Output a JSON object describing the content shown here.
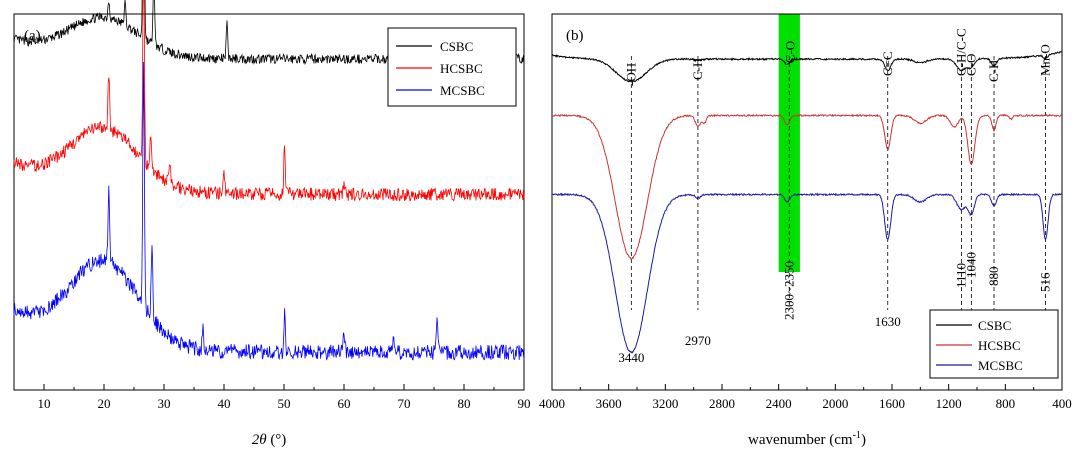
{
  "chart_data": [
    {
      "type": "line",
      "panel_label": "(a)",
      "xlabel_italic": "2θ",
      "xlabel_unit": " (°)",
      "ylabel": "",
      "xlim": [
        5,
        90
      ],
      "x_ticks": [
        10,
        20,
        30,
        40,
        50,
        60,
        70,
        80,
        90
      ],
      "y_ticks_shown": false,
      "legend_position": "top-right",
      "series": [
        {
          "name": "CSBC",
          "color": "#000000",
          "baseline": 0.88,
          "noise": 0.025,
          "hump": 0.1,
          "peaks": [
            [
              20.8,
              0.05
            ],
            [
              23.5,
              0.06
            ],
            [
              26.6,
              0.55
            ],
            [
              28.3,
              0.18
            ],
            [
              40.5,
              0.09
            ]
          ]
        },
        {
          "name": "HCSBC",
          "color": "#ff0000",
          "baseline": 0.52,
          "noise": 0.035,
          "hump": 0.16,
          "peaks": [
            [
              20.8,
              0.15
            ],
            [
              26.6,
              0.55
            ],
            [
              27.8,
              0.1
            ],
            [
              31.0,
              0.06
            ],
            [
              40.0,
              0.05
            ],
            [
              50.1,
              0.14
            ],
            [
              60.0,
              0.04
            ]
          ]
        },
        {
          "name": "MCSBC",
          "color": "#0000ff",
          "baseline": 0.1,
          "noise": 0.04,
          "hump": 0.22,
          "peaks": [
            [
              20.8,
              0.2
            ],
            [
              26.6,
              0.65
            ],
            [
              28.0,
              0.2
            ],
            [
              36.5,
              0.05
            ],
            [
              50.1,
              0.1
            ],
            [
              60.0,
              0.06
            ],
            [
              68.2,
              0.04
            ],
            [
              75.5,
              0.1
            ]
          ]
        }
      ]
    },
    {
      "type": "line",
      "panel_label": "(b)",
      "xlabel_base": "wavenumber (cm",
      "xlabel_sup": "-1",
      "xlabel_end": ")",
      "ylabel": "",
      "xlim": [
        4000,
        400
      ],
      "x_ticks": [
        4000,
        3600,
        3200,
        2800,
        2400,
        2000,
        1600,
        1200,
        800,
        400
      ],
      "y_ticks_shown": false,
      "legend_position": "bottom-right",
      "highlight_band": {
        "from": 2400,
        "to": 2250,
        "label": "C-O",
        "color": "#00e000"
      },
      "peak_markers": [
        {
          "x": 3440,
          "label": "-OH",
          "value_label": "3440"
        },
        {
          "x": 2970,
          "label": "C-H",
          "value_label": "2970"
        },
        {
          "x": 2325,
          "label": "",
          "value_label": "2300~2350"
        },
        {
          "x": 1630,
          "label": "C=C",
          "value_label": "1630"
        },
        {
          "x": 1110,
          "label": "C-H/C-C",
          "value_label": "1110"
        },
        {
          "x": 1040,
          "label": "C-O",
          "value_label": "1040"
        },
        {
          "x": 880,
          "label": "C-H",
          "value_label": "880"
        },
        {
          "x": 516,
          "label": "Mn-O",
          "value_label": "516"
        }
      ],
      "series": [
        {
          "name": "CSBC",
          "color": "#000000",
          "baseline": 0.88,
          "bands": [
            [
              3440,
              0.06,
              150
            ],
            [
              2970,
              0.005,
              30
            ],
            [
              2340,
              0.015,
              25
            ],
            [
              1630,
              0.03,
              30
            ],
            [
              1400,
              0.01,
              60
            ],
            [
              1110,
              0.03,
              50
            ],
            [
              1040,
              0.02,
              30
            ],
            [
              880,
              0.02,
              25
            ],
            [
              516,
              0.01,
              20
            ]
          ]
        },
        {
          "name": "HCSBC",
          "color": "#cc3333",
          "baseline": 0.73,
          "bands": [
            [
              3440,
              0.38,
              160
            ],
            [
              2970,
              0.03,
              25
            ],
            [
              2925,
              0.02,
              20
            ],
            [
              2340,
              0.025,
              25
            ],
            [
              1630,
              0.09,
              30
            ],
            [
              1400,
              0.02,
              60
            ],
            [
              1160,
              0.03,
              40
            ],
            [
              1040,
              0.13,
              35
            ],
            [
              880,
              0.04,
              20
            ],
            [
              760,
              0.01,
              15
            ]
          ]
        },
        {
          "name": "MCSBC",
          "color": "#1a1aa8",
          "baseline": 0.52,
          "bands": [
            [
              3440,
              0.42,
              160
            ],
            [
              2970,
              0.01,
              25
            ],
            [
              2340,
              0.02,
              25
            ],
            [
              1630,
              0.12,
              30
            ],
            [
              1400,
              0.02,
              60
            ],
            [
              1110,
              0.04,
              45
            ],
            [
              1040,
              0.05,
              30
            ],
            [
              880,
              0.03,
              25
            ],
            [
              516,
              0.12,
              25
            ]
          ]
        }
      ]
    }
  ]
}
